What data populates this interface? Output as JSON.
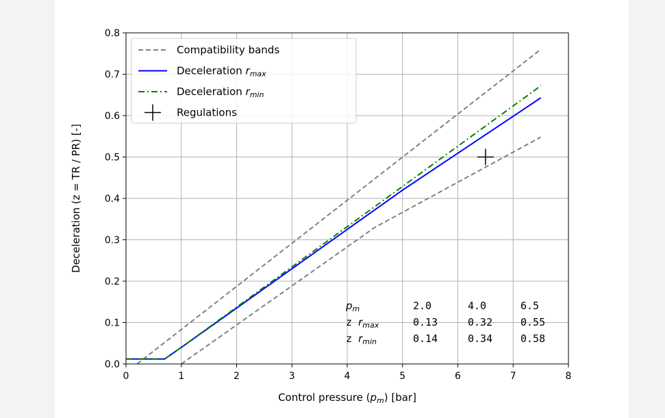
{
  "chart_data": {
    "type": "line",
    "xlabel": "Control pressure (p_m) [bar]",
    "ylabel": "Deceleration (z = TR / PR) [-]",
    "xlim": [
      0,
      8
    ],
    "ylim": [
      0,
      0.8
    ],
    "xticks": [
      "0",
      "1",
      "2",
      "3",
      "4",
      "5",
      "6",
      "7",
      "8"
    ],
    "yticks": [
      "0.0",
      "0.1",
      "0.2",
      "0.3",
      "0.4",
      "0.5",
      "0.6",
      "0.7",
      "0.8"
    ],
    "grid": true,
    "legend_position": "top-left",
    "series": [
      {
        "name": "Compatibility bands",
        "style": "dashed",
        "color": "#808080",
        "segments": [
          [
            [
              0.2,
              0.0
            ],
            [
              7.5,
              0.76
            ]
          ],
          [
            [
              1.0,
              0.0
            ],
            [
              4.5,
              0.33
            ],
            [
              7.5,
              0.548
            ]
          ]
        ]
      },
      {
        "name": "Deceleration r_max",
        "style": "solid",
        "color": "#0000ff",
        "x": [
          0,
          0.7,
          1.0,
          5.0,
          7.5
        ],
        "y": [
          0.012,
          0.012,
          0.04,
          0.42,
          0.643
        ]
      },
      {
        "name": "Deceleration r_min",
        "style": "dashdot",
        "color": "#008000",
        "x": [
          0,
          0.7,
          1.0,
          7.5
        ],
        "y": [
          0.012,
          0.012,
          0.04,
          0.672
        ]
      },
      {
        "name": "Regulations",
        "style": "marker-plus",
        "color": "#000000",
        "x": [
          6.5
        ],
        "y": [
          0.5
        ]
      }
    ],
    "table": {
      "header": {
        "label": "p",
        "label_sub": "m",
        "values": [
          "2.0",
          "4.0",
          "6.5"
        ]
      },
      "rows": [
        {
          "label": "z",
          "label_r": "r",
          "label_sub": "max",
          "values": [
            "0.13",
            "0.32",
            "0.55"
          ]
        },
        {
          "label": "z",
          "label_r": "r",
          "label_sub": "min",
          "values": [
            "0.14",
            "0.34",
            "0.58"
          ]
        }
      ]
    }
  },
  "axis_text": {
    "xlabel_pre": "Control pressure (",
    "xlabel_var": "p",
    "xlabel_sub": "m",
    "xlabel_post": ") [bar]"
  },
  "legend": [
    {
      "label": "Compatibility bands"
    },
    {
      "label": "Deceleration ",
      "var": "r",
      "sub": "max"
    },
    {
      "label": "Deceleration ",
      "var": "r",
      "sub": "min"
    },
    {
      "label": "Regulations"
    }
  ]
}
